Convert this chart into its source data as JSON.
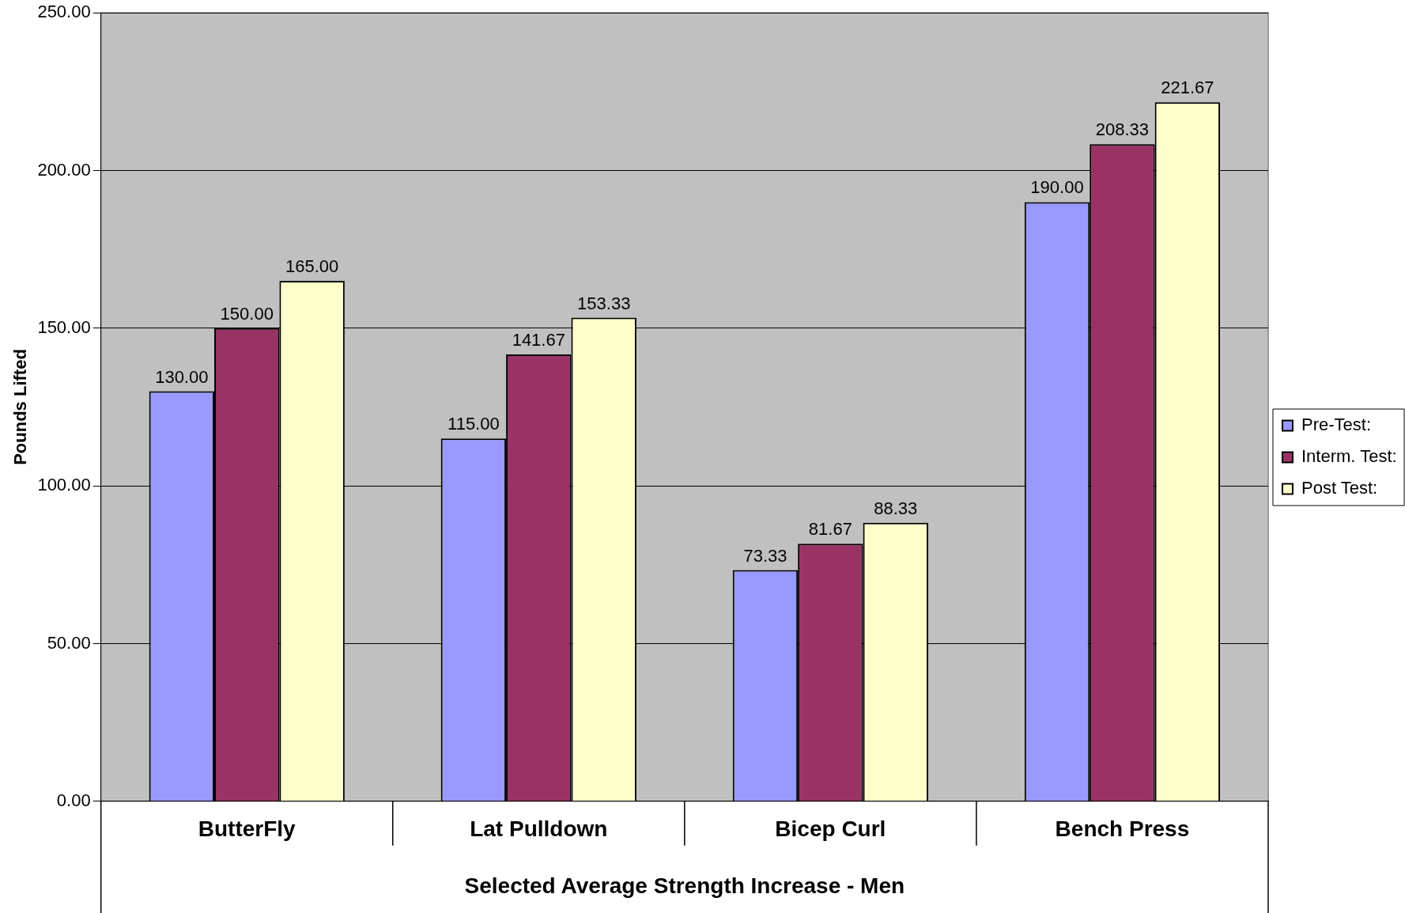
{
  "chart_data": {
    "type": "bar",
    "xlabel": "Selected Average Strength Increase - Men",
    "ylabel": "Pounds Lifted",
    "categories": [
      "ButterFly",
      "Lat Pulldown",
      "Bicep Curl",
      "Bench Press"
    ],
    "series": [
      {
        "name": "Pre-Test:",
        "color": "#9999ff",
        "values": [
          130.0,
          115.0,
          73.33,
          190.0
        ],
        "value_labels": [
          "130.00",
          "115.00",
          "73.33",
          "190.00"
        ]
      },
      {
        "name": "Interm. Test:",
        "color": "#993366",
        "values": [
          150.0,
          141.67,
          81.67,
          208.33
        ],
        "value_labels": [
          "150.00",
          "141.67",
          "81.67",
          "208.33"
        ]
      },
      {
        "name": "Post Test:",
        "color": "#ffffcc",
        "values": [
          165.0,
          153.33,
          88.33,
          221.67
        ],
        "value_labels": [
          "165.00",
          "153.33",
          "88.33",
          "221.67"
        ]
      }
    ],
    "ylim": [
      0,
      250
    ],
    "yticks": [
      {
        "value": 0,
        "label": "0.00"
      },
      {
        "value": 50,
        "label": "50.00"
      },
      {
        "value": 100,
        "label": "100.00"
      },
      {
        "value": 150,
        "label": "150.00"
      },
      {
        "value": 200,
        "label": "200.00"
      },
      {
        "value": 250,
        "label": "250.00"
      }
    ],
    "grid": "y",
    "legend": "right"
  }
}
